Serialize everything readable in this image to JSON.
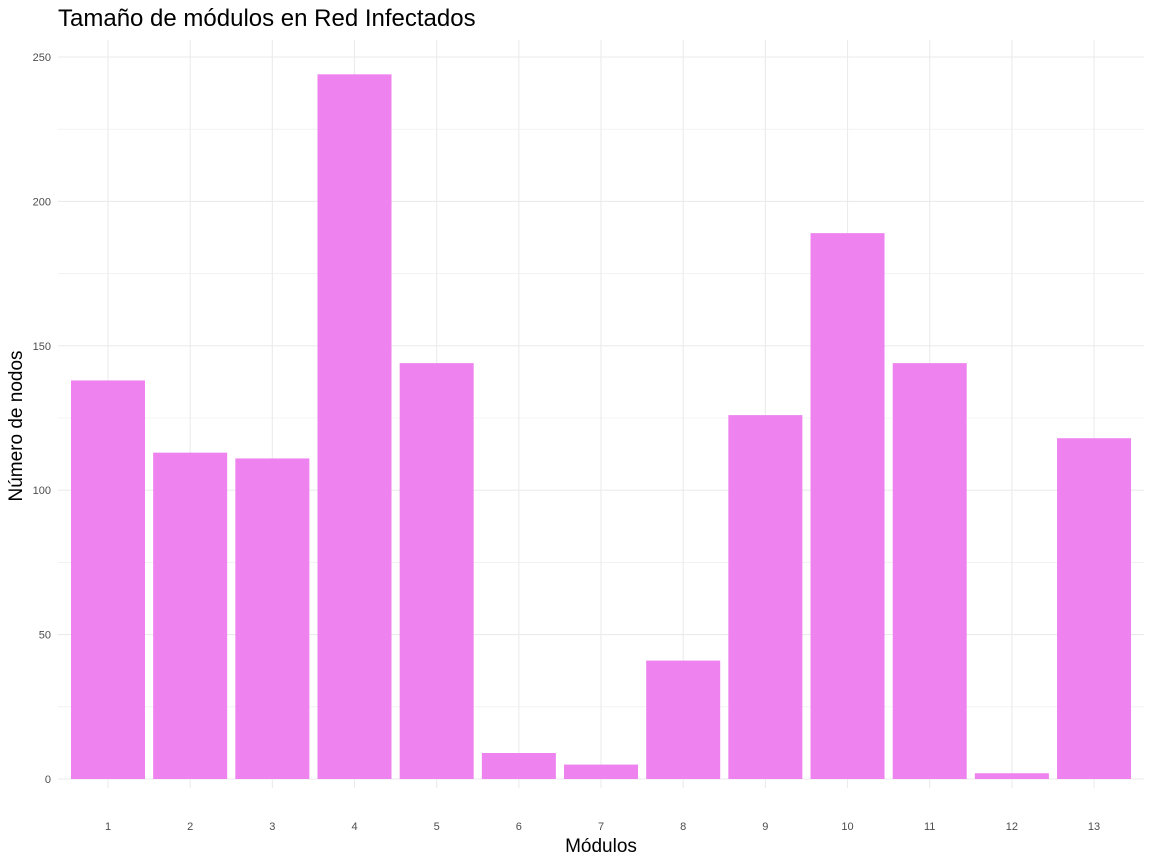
{
  "chart_data": {
    "type": "bar",
    "title": "Tamaño de módulos en Red Infectados",
    "xlabel": "Módulos",
    "ylabel": "Número de nodos",
    "categories": [
      "1",
      "2",
      "3",
      "4",
      "5",
      "6",
      "7",
      "8",
      "9",
      "10",
      "11",
      "12",
      "13"
    ],
    "values": [
      138,
      113,
      111,
      244,
      144,
      9,
      5,
      41,
      126,
      189,
      144,
      2,
      118
    ],
    "ylim": [
      0,
      250
    ],
    "yticks": [
      0,
      50,
      100,
      150,
      200,
      250
    ],
    "grid": true,
    "legend": "none",
    "bar_color": "#EE82EE",
    "grid_color": "#EBEBEB"
  }
}
